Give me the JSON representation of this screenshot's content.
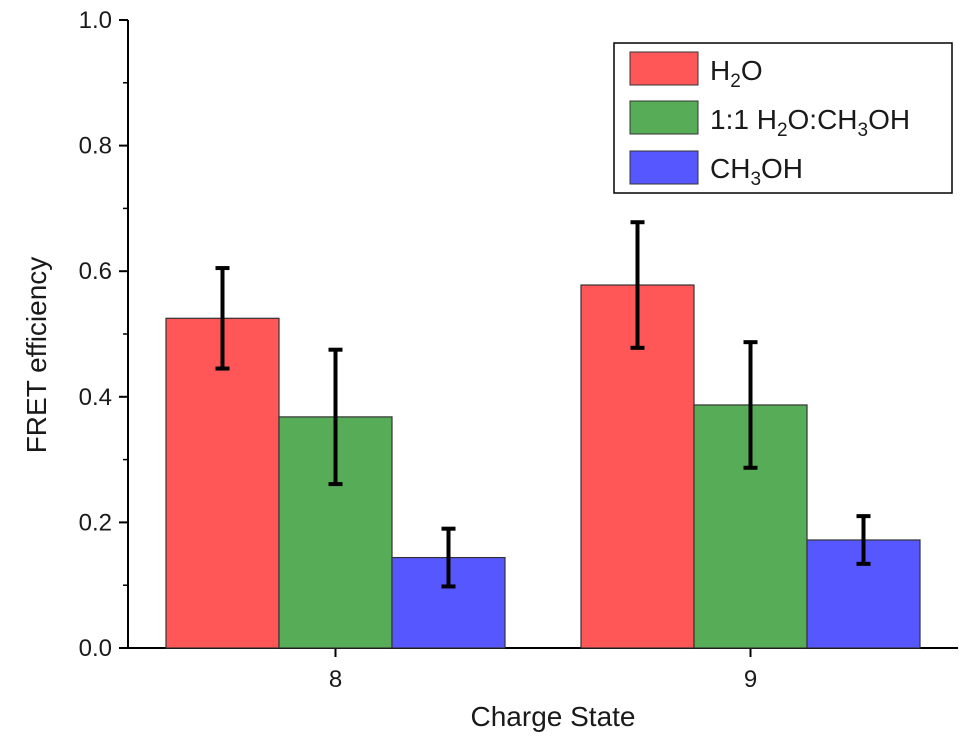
{
  "chart_data": {
    "type": "bar",
    "title": "",
    "xlabel": "Charge State",
    "ylabel": "FRET efficiency",
    "categories": [
      "8",
      "9"
    ],
    "ylim": [
      0,
      1.0
    ],
    "yticks": [
      "0.0",
      "0.2",
      "0.4",
      "0.6",
      "0.8",
      "1.0"
    ],
    "grid": false,
    "legend": "top-right",
    "series": [
      {
        "name": "H2O",
        "color": "#ff5757",
        "values": [
          0.525,
          0.578
        ],
        "errors": [
          0.08,
          0.1
        ]
      },
      {
        "name": "1:1 H2O:CH3OH",
        "color": "#57ad57",
        "values": [
          0.368,
          0.387
        ],
        "errors": [
          0.107,
          0.1
        ]
      },
      {
        "name": "CH3OH",
        "color": "#5757ff",
        "values": [
          0.144,
          0.172
        ],
        "errors": [
          0.046,
          0.038
        ]
      }
    ]
  }
}
